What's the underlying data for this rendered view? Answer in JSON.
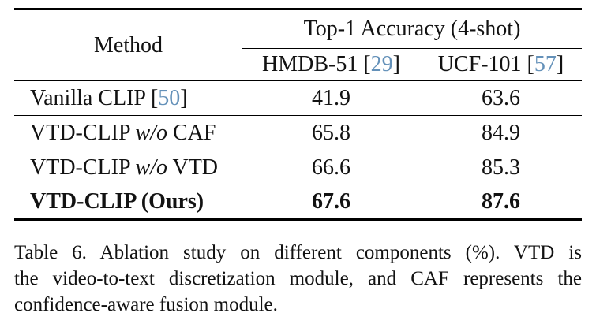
{
  "colors": {
    "background": "#ffffff",
    "text": "#121212",
    "rule": "#000000",
    "citation": "#6491b9"
  },
  "table": {
    "header": {
      "method_label": "Method",
      "group_label": "Top-1 Accuracy (4-shot)",
      "hmdb": {
        "prefix": "HMDB-51 [",
        "cite": "29",
        "suffix": "]"
      },
      "ucf": {
        "prefix": "UCF-101 [",
        "cite": "57",
        "suffix": "]"
      }
    },
    "rows": [
      {
        "method": {
          "pre": "Vanilla CLIP [",
          "cite": "50",
          "post": "]"
        },
        "hmdb": "41.9",
        "ucf": "63.6"
      },
      {
        "method": {
          "pre": "VTD-CLIP ",
          "italic": "w/o",
          "post": " CAF"
        },
        "hmdb": "65.8",
        "ucf": "84.9"
      },
      {
        "method": {
          "pre": "VTD-CLIP ",
          "italic": "w/o",
          "post": " VTD"
        },
        "hmdb": "66.6",
        "ucf": "85.3"
      },
      {
        "method": {
          "pre": "VTD-CLIP (Ours)"
        },
        "hmdb": "67.6",
        "ucf": "87.6"
      }
    ]
  },
  "caption": {
    "lines": [
      "Table 6.  Ablation study on different components (%).  VTD is",
      "the video-to-text discretization module, and CAF represents the",
      "confidence-aware fusion module."
    ]
  }
}
